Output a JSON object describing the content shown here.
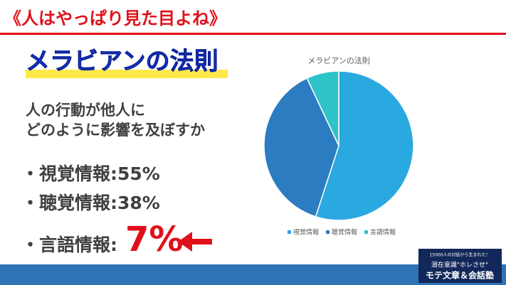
{
  "header": {
    "title": "《人はやっぱり見た目よね》"
  },
  "slide": {
    "heading": "メラビアンの法則",
    "question": [
      "人の行動が他人に",
      "どのように影響を及ぼすか"
    ],
    "bullets": [
      "・視覚情報:55%",
      "・聴覚情報:38%",
      "・言語情報:"
    ],
    "emphasis": "7%"
  },
  "logo": {
    "tagline": "15000人の対話から生まれた！",
    "line1": "潜在意識\"ホレさせ\"",
    "line2": "モテ文章＆会話塾"
  },
  "chart_data": {
    "type": "pie",
    "title": "メラビアンの法則",
    "categories": [
      "視覚情報",
      "聴覚情報",
      "言語情報"
    ],
    "values": [
      55,
      38,
      7
    ],
    "colors": [
      "#2aa8e0",
      "#2b7cc0",
      "#2ec3c9"
    ]
  }
}
